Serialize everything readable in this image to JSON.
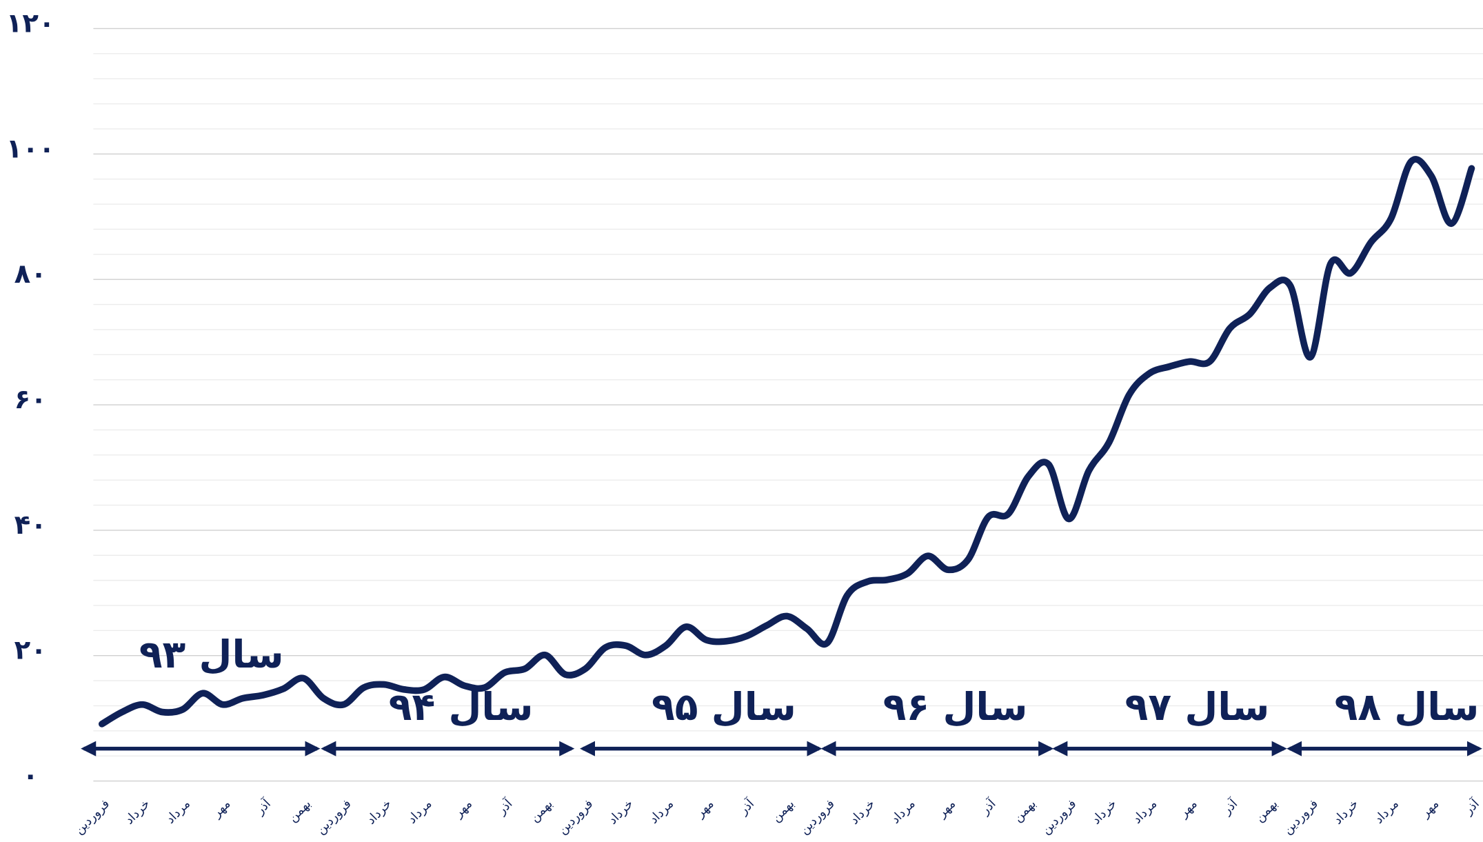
{
  "chart_data": {
    "type": "line",
    "color": "#0f2157",
    "categories": [
      "فروردین",
      null,
      "خرداد",
      null,
      "مرداد",
      null,
      "مهر",
      null,
      "آذر",
      null,
      "بهمن",
      null,
      "فروردین",
      null,
      "خرداد",
      null,
      "مرداد",
      null,
      "مهر",
      null,
      "آذر",
      null,
      "بهمن",
      null,
      "فروردین",
      null,
      "خرداد",
      null,
      "مرداد",
      null,
      "مهر",
      null,
      "آذر",
      null,
      "بهمن",
      null,
      "فروردین",
      null,
      "خرداد",
      null,
      "مرداد",
      null,
      "مهر",
      null,
      "آذر",
      null,
      "بهمن",
      null,
      "فروردین",
      null,
      "خرداد",
      null,
      "مرداد",
      null,
      "مهر",
      null,
      "آذر",
      null,
      "بهمن",
      null,
      "فروردین",
      null,
      "خرداد",
      null,
      "مرداد",
      null,
      "مهر",
      null,
      "آذر"
    ],
    "values": [
      9.1,
      11,
      12.2,
      11,
      11.4,
      14,
      12.2,
      13.2,
      13.7,
      14.7,
      16.4,
      13.2,
      12.2,
      14.9,
      15.4,
      14.6,
      14.6,
      16.6,
      15.2,
      14.9,
      17.3,
      17.9,
      20.1,
      17,
      17.9,
      21.3,
      21.6,
      20.1,
      21.6,
      24.6,
      22.5,
      22.3,
      23.1,
      24.8,
      26.3,
      24.3,
      22,
      29.6,
      31.8,
      32.1,
      33.1,
      35.9,
      33.7,
      35.3,
      42.1,
      42.6,
      48.6,
      50.5,
      41.8,
      49.5,
      54,
      61.6,
      65,
      66.1,
      66.9,
      66.9,
      72.2,
      74.5,
      78.7,
      79,
      67.6,
      82.5,
      81,
      85.9,
      89.7,
      98.8,
      96.5,
      88.9,
      97.7
    ],
    "ylim": [
      0,
      120
    ],
    "yticks": [
      {
        "value": 0,
        "label": "۰"
      },
      {
        "value": 20,
        "label": "۲۰"
      },
      {
        "value": 40,
        "label": "۴۰"
      },
      {
        "value": 60,
        "label": "۶۰"
      },
      {
        "value": 80,
        "label": "۸۰"
      },
      {
        "value": 100,
        "label": "۱۰۰"
      },
      {
        "value": 120,
        "label": "۱۲۰"
      }
    ],
    "minor_yticks": [
      4,
      8,
      12,
      16,
      24,
      28,
      32,
      36,
      44,
      48,
      52,
      56,
      64,
      68,
      72,
      76,
      84,
      88,
      92,
      96,
      104,
      108,
      112,
      116
    ],
    "grid": true,
    "annotations": [
      "سال ۹۳",
      "سال ۹۴",
      "سال ۹۵",
      "سال ۹۶",
      "سال ۹۷",
      "سال ۹۸"
    ]
  }
}
